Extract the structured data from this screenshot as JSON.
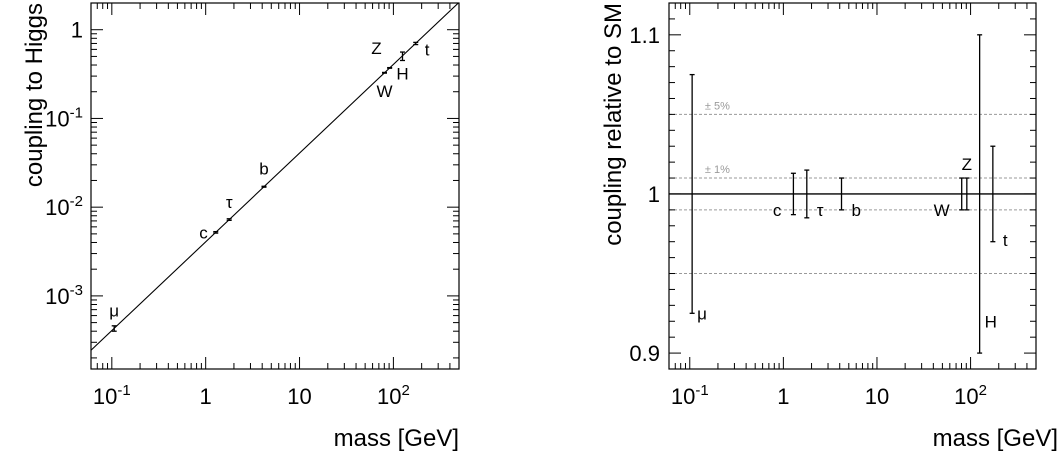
{
  "chart_data": [
    {
      "type": "scatter",
      "xlabel": "mass [GeV]",
      "ylabel": "coupling to Higgs",
      "xscale": "log",
      "yscale": "log",
      "xlim": [
        0.06,
        500
      ],
      "ylim": [
        0.00015,
        2
      ],
      "grid": false,
      "xticks": [
        {
          "value": 0.1,
          "base": "10",
          "exp": "-1"
        },
        {
          "value": 1,
          "base": "1",
          "exp": ""
        },
        {
          "value": 10,
          "base": "10",
          "exp": ""
        },
        {
          "value": 100,
          "base": "10",
          "exp": "2"
        }
      ],
      "yticks": [
        {
          "value": 0.001,
          "base": "10",
          "exp": "-3"
        },
        {
          "value": 0.01,
          "base": "10",
          "exp": "-2"
        },
        {
          "value": 0.1,
          "base": "10",
          "exp": "-1"
        },
        {
          "value": 1,
          "base": "1",
          "exp": ""
        }
      ],
      "reference_line": {
        "description": "y = x / v",
        "v": 246
      },
      "points": [
        {
          "label": "μ",
          "x": 0.106,
          "y": 0.00043,
          "ylow": 0.0004,
          "yhigh": 0.00046,
          "label_pos": "above"
        },
        {
          "label": "c",
          "x": 1.28,
          "y": 0.0052,
          "ylow": 0.0051,
          "yhigh": 0.0053,
          "label_pos": "left"
        },
        {
          "label": "τ",
          "x": 1.78,
          "y": 0.0072,
          "ylow": 0.0071,
          "yhigh": 0.0074,
          "label_pos": "above"
        },
        {
          "label": "b",
          "x": 4.18,
          "y": 0.017,
          "ylow": 0.0168,
          "yhigh": 0.0172,
          "label_pos": "above"
        },
        {
          "label": "W",
          "x": 80.4,
          "y": 0.327,
          "ylow": 0.324,
          "yhigh": 0.33,
          "label_pos": "below"
        },
        {
          "label": "Z",
          "x": 91.2,
          "y": 0.371,
          "ylow": 0.368,
          "yhigh": 0.374,
          "label_pos": "above-left"
        },
        {
          "label": "H",
          "x": 125,
          "y": 0.51,
          "ylow": 0.45,
          "yhigh": 0.56,
          "label_pos": "below"
        },
        {
          "label": "t",
          "x": 173,
          "y": 0.703,
          "ylow": 0.68,
          "yhigh": 0.72,
          "label_pos": "right"
        }
      ]
    },
    {
      "type": "scatter",
      "xlabel": "mass [GeV]",
      "ylabel": "coupling relative to SM",
      "xscale": "log",
      "xlim": [
        0.06,
        500
      ],
      "ylim": [
        0.89,
        1.12
      ],
      "grid": false,
      "xticks": [
        {
          "value": 0.1,
          "base": "10",
          "exp": "-1"
        },
        {
          "value": 1,
          "base": "1",
          "exp": ""
        },
        {
          "value": 10,
          "base": "10",
          "exp": ""
        },
        {
          "value": 100,
          "base": "10",
          "exp": "2"
        }
      ],
      "yticks": [
        {
          "value": 0.9,
          "label": "0.9"
        },
        {
          "value": 1.0,
          "label": "1"
        },
        {
          "value": 1.1,
          "label": "1.1"
        }
      ],
      "reference_line": {
        "y": 1.0
      },
      "bands": [
        {
          "label": "± 5%",
          "low": 0.95,
          "high": 1.05
        },
        {
          "label": "± 1%",
          "low": 0.99,
          "high": 1.01
        }
      ],
      "points": [
        {
          "label": "μ",
          "x": 0.106,
          "ylow": 0.925,
          "yhigh": 1.075,
          "label_pos": "bottom-right"
        },
        {
          "label": "c",
          "x": 1.28,
          "ylow": 0.987,
          "yhigh": 1.013,
          "label_pos": "below-left"
        },
        {
          "label": "τ",
          "x": 1.78,
          "ylow": 0.985,
          "yhigh": 1.015,
          "label_pos": "below-right"
        },
        {
          "label": "b",
          "x": 4.18,
          "ylow": 0.99,
          "yhigh": 1.01,
          "label_pos": "below-right"
        },
        {
          "label": "W",
          "x": 80.4,
          "ylow": 0.99,
          "yhigh": 1.01,
          "label_pos": "below-left"
        },
        {
          "label": "Z",
          "x": 91.2,
          "ylow": 0.99,
          "yhigh": 1.01,
          "label_pos": "above"
        },
        {
          "label": "H",
          "x": 125,
          "ylow": 0.9,
          "yhigh": 1.1,
          "label_pos": "bottom-right"
        },
        {
          "label": "t",
          "x": 173,
          "ylow": 0.97,
          "yhigh": 1.03,
          "label_pos": "below-right"
        }
      ]
    }
  ]
}
